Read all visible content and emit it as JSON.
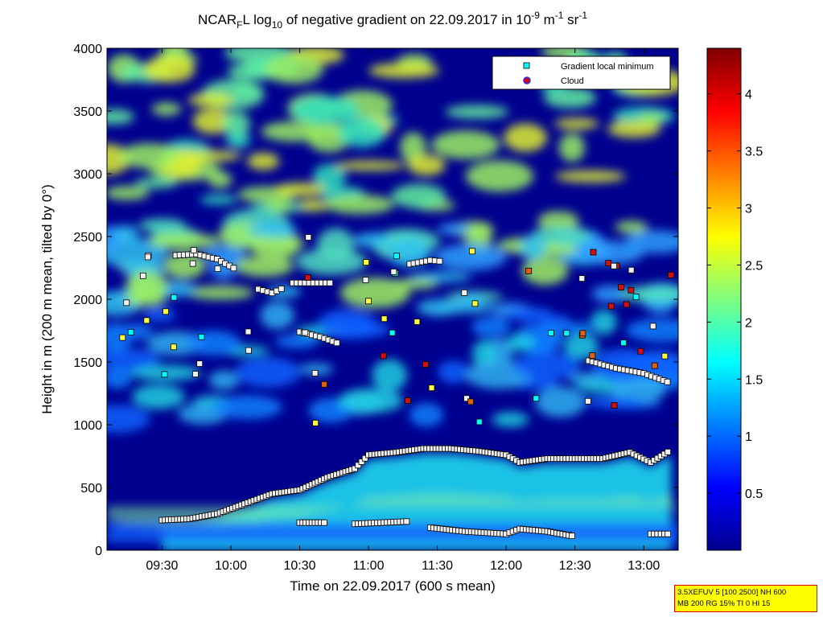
{
  "chart_data": {
    "type": "heatmap",
    "title": {
      "prefix": "NCAR",
      "sub": "F",
      "mid": "L log",
      "sub2": "10",
      "rest": " of negative gradient on 22.09.2017 in 10",
      "sup1": "-9",
      "unit1": " m",
      "sup2": "-1",
      "unit2": " sr",
      "sup3": "-1"
    },
    "xlabel": "Time on 22.09.2017 (600 s mean)",
    "ylabel": "Height in m (200 m mean, tilted by 0°)",
    "x_ticks": [
      "09:30",
      "10:00",
      "10:30",
      "11:00",
      "11:30",
      "12:00",
      "12:30",
      "13:00"
    ],
    "x_tick_hours": [
      9.5,
      10.0,
      10.5,
      11.0,
      11.5,
      12.0,
      12.5,
      13.0
    ],
    "xlim_hours": [
      9.1,
      13.25
    ],
    "y_ticks": [
      0,
      500,
      1000,
      1500,
      2000,
      2500,
      3000,
      3500,
      4000
    ],
    "ylim": [
      0,
      4000
    ],
    "colorbar": {
      "ticks": [
        "0.5",
        "1",
        "1.5",
        "2",
        "2.5",
        "3",
        "3.5",
        "4"
      ],
      "tick_values": [
        0.5,
        1,
        1.5,
        2,
        2.5,
        3,
        3.5,
        4
      ],
      "range": [
        0,
        4.4
      ],
      "colormap": "jet"
    },
    "legend": {
      "placement": "top-right",
      "entries": [
        {
          "label": "Gradient local minimum",
          "marker": "square",
          "color": "#00ffff"
        },
        {
          "label": "Cloud",
          "marker": "circle",
          "color": "#e00000"
        }
      ]
    },
    "boundary_layer_top": {
      "name": "Gradient local minimum",
      "x_hours": [
        9.5,
        9.7,
        9.9,
        10.1,
        10.3,
        10.5,
        10.7,
        10.9,
        11.0,
        11.2,
        11.4,
        11.6,
        11.8,
        12.0,
        12.1,
        12.3,
        12.5,
        12.7,
        12.9,
        13.05,
        13.2
      ],
      "y": [
        240,
        250,
        290,
        370,
        450,
        480,
        580,
        650,
        760,
        780,
        810,
        810,
        790,
        760,
        700,
        730,
        730,
        730,
        780,
        700,
        800
      ]
    },
    "lower_layer_segments": [
      {
        "x_hours": [
          10.5,
          10.7
        ],
        "y": [
          220,
          220
        ]
      },
      {
        "x_hours": [
          10.9,
          11.3
        ],
        "y": [
          210,
          230
        ]
      },
      {
        "x_hours": [
          11.45,
          11.7,
          12.0,
          12.1,
          12.3,
          12.5
        ],
        "y": [
          180,
          150,
          130,
          170,
          150,
          110
        ]
      },
      {
        "x_hours": [
          13.05,
          13.2
        ],
        "y": [
          130,
          130
        ]
      }
    ],
    "upper_minima_segments": [
      {
        "x_hours": [
          9.6,
          9.75,
          9.9,
          10.05
        ],
        "y": [
          2350,
          2360,
          2320,
          2230
        ]
      },
      {
        "x_hours": [
          10.2,
          10.3,
          10.4
        ],
        "y": [
          2080,
          2050,
          2100
        ]
      },
      {
        "x_hours": [
          10.45,
          10.6,
          10.75
        ],
        "y": [
          2130,
          2130,
          2130
        ]
      },
      {
        "x_hours": [
          10.5,
          10.65,
          10.8
        ],
        "y": [
          1740,
          1700,
          1640
        ]
      },
      {
        "x_hours": [
          11.3,
          11.45,
          11.55
        ],
        "y": [
          2280,
          2310,
          2300
        ]
      },
      {
        "x_hours": [
          12.6,
          12.8,
          13.0,
          13.2
        ],
        "y": [
          1510,
          1450,
          1410,
          1330
        ]
      }
    ]
  },
  "info_box": {
    "line1": "3.5XEFUV 5 [100 2500] NH 600",
    "line2": "MB 200 RG 15% TI 0 HI 15"
  }
}
